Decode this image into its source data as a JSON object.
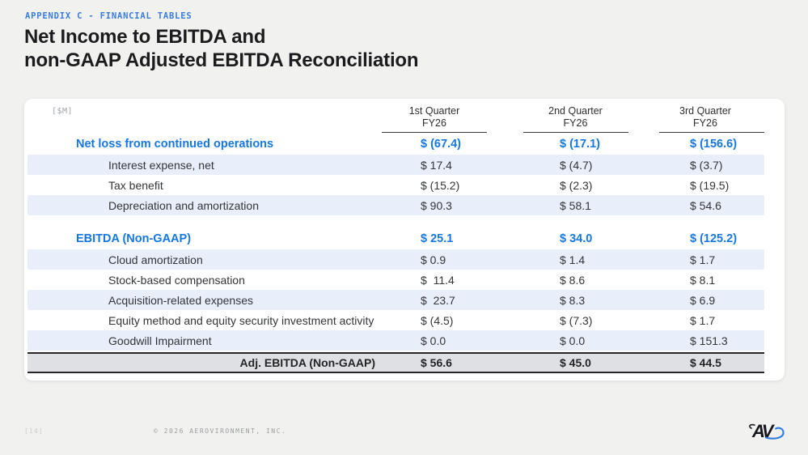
{
  "colors": {
    "page_background": "#F1F2F0",
    "card_background": "#FFFFFF",
    "accent_blue": "#1677E2",
    "eyebrow_blue": "#3A7BE0",
    "row_band_blue": "#E8EEFA",
    "total_row_gray": "#DFE0E3",
    "border_dark": "#27272B",
    "logo_swoosh_blue": "#2F7DE1"
  },
  "header": {
    "eyebrow": "APPENDIX C - FINANCIAL TABLES",
    "title_line1": "Net Income to EBITDA and",
    "title_line2": "non-GAAP Adjusted EBITDA Reconciliation"
  },
  "table": {
    "unit_label": "[$M]",
    "columns": [
      {
        "line1": "1st Quarter",
        "line2": "FY26"
      },
      {
        "line1": "2nd Quarter",
        "line2": "FY26"
      },
      {
        "line1": "3rd Quarter",
        "line2": "FY26"
      }
    ],
    "rows": [
      {
        "type": "section",
        "shaded": false,
        "label": "Net loss from continued operations",
        "values": [
          "$ (67.4)",
          "$ (17.1)",
          "$ (156.6)"
        ]
      },
      {
        "type": "item",
        "shaded": true,
        "label": "Interest expense, net",
        "values": [
          "$ 17.4",
          "$ (4.7)",
          "$ (3.7)"
        ]
      },
      {
        "type": "item",
        "shaded": false,
        "label": "Tax benefit",
        "values": [
          "$ (15.2)",
          "$ (2.3)",
          "$ (19.5)"
        ]
      },
      {
        "type": "item",
        "shaded": true,
        "label": "Depreciation and amortization",
        "values": [
          "$ 90.3",
          "$ 58.1",
          "$ 54.6"
        ]
      },
      {
        "type": "spacer"
      },
      {
        "type": "section",
        "shaded": false,
        "label": "EBITDA (Non-GAAP)",
        "values": [
          "$ 25.1",
          "$ 34.0",
          "$ (125.2)"
        ]
      },
      {
        "type": "item",
        "shaded": true,
        "label": "Cloud amortization",
        "values": [
          "$ 0.9",
          "$ 1.4",
          "$ 1.7"
        ]
      },
      {
        "type": "item",
        "shaded": false,
        "label": "Stock-based compensation",
        "values": [
          "$  11.4",
          "$ 8.6",
          "$ 8.1"
        ]
      },
      {
        "type": "item",
        "shaded": true,
        "label": "Acquisition-related expenses",
        "values": [
          "$  23.7",
          "$ 8.3",
          "$ 6.9"
        ]
      },
      {
        "type": "item",
        "shaded": false,
        "label": "Equity method and equity security investment activity",
        "values": [
          "$ (4.5)",
          "$ (7.3)",
          "$ 1.7"
        ]
      },
      {
        "type": "item",
        "shaded": true,
        "label": "Goodwill Impairment",
        "values": [
          "$ 0.0",
          "$ 0.0",
          "$ 151.3"
        ]
      }
    ],
    "total": {
      "label": "Adj. EBITDA (Non-GAAP)",
      "values": [
        "$ 56.6",
        "$ 45.0",
        "$ 44.5"
      ]
    }
  },
  "footer": {
    "page_number": "[14]",
    "copyright": "© 2026 AEROVIRONMENT, INC.",
    "logo_text": "AV",
    "logo_name": "aerovironment-av-logo"
  }
}
